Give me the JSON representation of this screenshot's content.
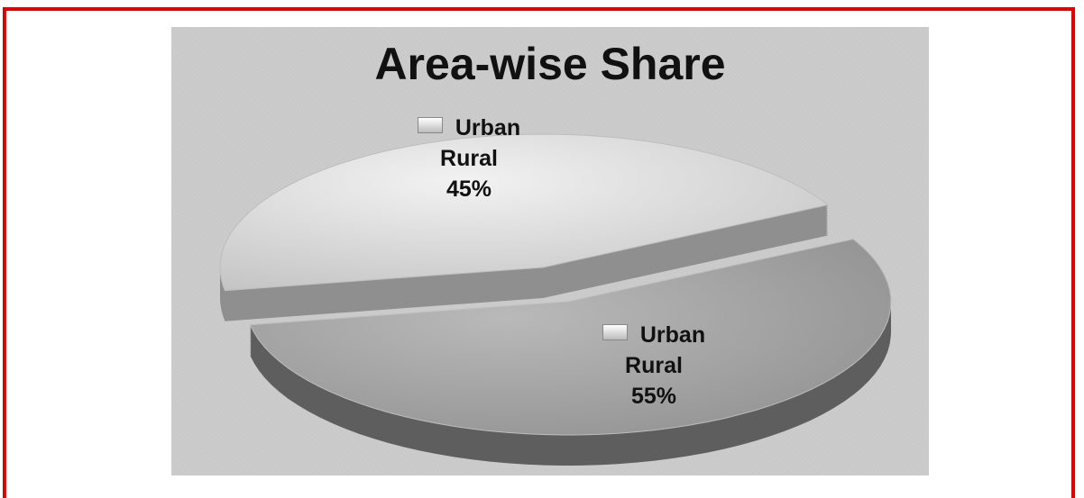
{
  "chart_data": {
    "type": "pie",
    "title": "Area-wise Share",
    "categories": [
      "Urban Rural",
      "Urban Rural"
    ],
    "values": [
      45,
      55
    ],
    "value_labels": [
      "45%",
      "55%"
    ],
    "colors": [
      "#dcdcdc",
      "#a9a9a9"
    ]
  }
}
